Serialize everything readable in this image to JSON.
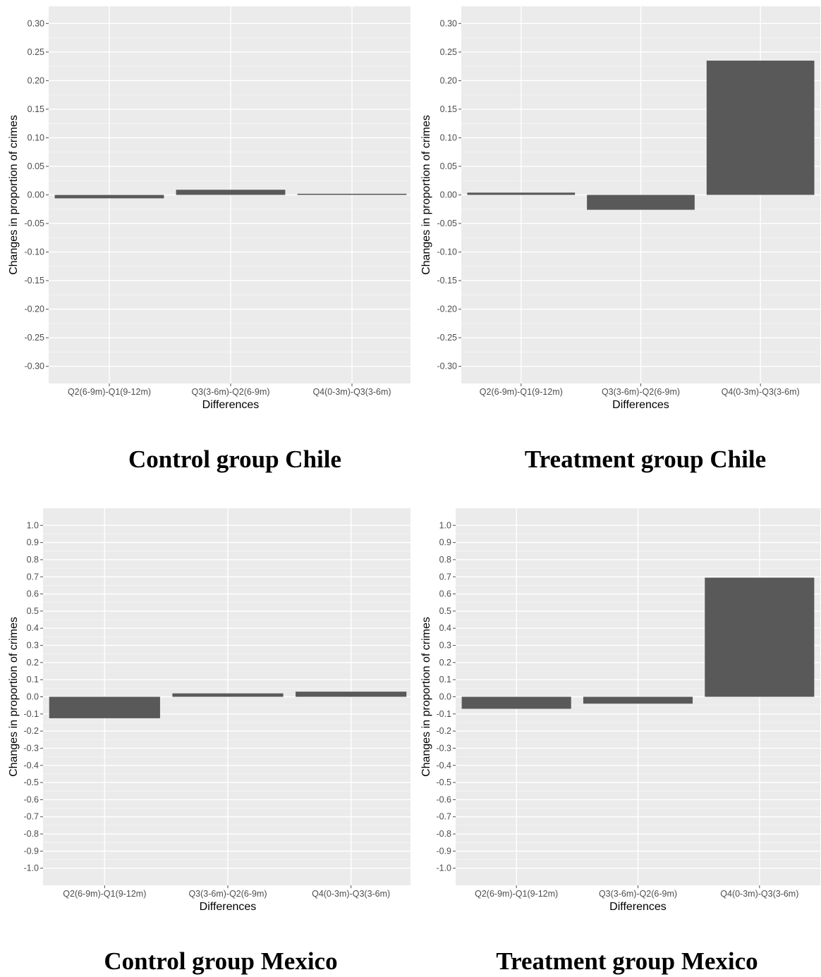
{
  "colors": {
    "panel_bg": "#EBEBEB",
    "grid_major": "#FFFFFF",
    "grid_minor": "#F5F5F5",
    "bar": "#595959",
    "tick": "#4D4D4D",
    "axis_title": "#000000"
  },
  "chart_data": [
    {
      "type": "bar",
      "caption": "Control group Chile",
      "xlabel": "Differences",
      "ylabel": "Changes in proportion of crimes",
      "categories": [
        "Q2(6-9m)-Q1(9-12m)",
        "Q3(3-6m)-Q2(6-9m)",
        "Q4(0-3m)-Q3(3-6m)"
      ],
      "values": [
        -0.006,
        0.009,
        0.002
      ],
      "ylim": [
        -0.33,
        0.33
      ],
      "yticks": [
        -0.3,
        -0.25,
        -0.2,
        -0.15,
        -0.1,
        -0.05,
        0.0,
        0.05,
        0.1,
        0.15,
        0.2,
        0.25,
        0.3
      ],
      "ytick_labels": [
        "-0.30",
        "-0.25",
        "-0.20",
        "-0.15",
        "-0.10",
        "-0.05",
        "0.00",
        "0.05",
        "0.10",
        "0.15",
        "0.20",
        "0.25",
        "0.30"
      ],
      "grid": true
    },
    {
      "type": "bar",
      "caption": "Treatment group Chile",
      "xlabel": "Differences",
      "ylabel": "Changes in proportion of crimes",
      "categories": [
        "Q2(6-9m)-Q1(9-12m)",
        "Q3(3-6m)-Q2(6-9m)",
        "Q4(0-3m)-Q3(3-6m)"
      ],
      "values": [
        0.004,
        -0.026,
        0.235
      ],
      "ylim": [
        -0.33,
        0.33
      ],
      "yticks": [
        -0.3,
        -0.25,
        -0.2,
        -0.15,
        -0.1,
        -0.05,
        0.0,
        0.05,
        0.1,
        0.15,
        0.2,
        0.25,
        0.3
      ],
      "ytick_labels": [
        "-0.30",
        "-0.25",
        "-0.20",
        "-0.15",
        "-0.10",
        "-0.05",
        "0.00",
        "0.05",
        "0.10",
        "0.15",
        "0.20",
        "0.25",
        "0.30"
      ],
      "grid": true
    },
    {
      "type": "bar",
      "caption": "Control group Mexico",
      "xlabel": "Differences",
      "ylabel": "Changes in proportion of crimes",
      "categories": [
        "Q2(6-9m)-Q1(9-12m)",
        "Q3(3-6m)-Q2(6-9m)",
        "Q4(0-3m)-Q3(3-6m)"
      ],
      "values": [
        -0.125,
        0.02,
        0.03
      ],
      "ylim": [
        -1.1,
        1.1
      ],
      "yticks": [
        -1.0,
        -0.9,
        -0.8,
        -0.7,
        -0.6,
        -0.5,
        -0.4,
        -0.3,
        -0.2,
        -0.1,
        0.0,
        0.1,
        0.2,
        0.3,
        0.4,
        0.5,
        0.6,
        0.7,
        0.8,
        0.9,
        1.0
      ],
      "ytick_labels": [
        "-1.0",
        "-0.9",
        "-0.8",
        "-0.7",
        "-0.6",
        "-0.5",
        "-0.4",
        "-0.3",
        "-0.2",
        "-0.1",
        "0.0",
        "0.1",
        "0.2",
        "0.3",
        "0.4",
        "0.5",
        "0.6",
        "0.7",
        "0.8",
        "0.9",
        "1.0"
      ],
      "grid": true
    },
    {
      "type": "bar",
      "caption": "Treatment group Mexico",
      "xlabel": "Differences",
      "ylabel": "Changes in proportion of crimes",
      "categories": [
        "Q2(6-9m)-Q1(9-12m)",
        "Q3(3-6m)-Q2(6-9m)",
        "Q4(0-3m)-Q3(3-6m)"
      ],
      "values": [
        -0.07,
        -0.04,
        0.695
      ],
      "ylim": [
        -1.1,
        1.1
      ],
      "yticks": [
        -1.0,
        -0.9,
        -0.8,
        -0.7,
        -0.6,
        -0.5,
        -0.4,
        -0.3,
        -0.2,
        -0.1,
        0.0,
        0.1,
        0.2,
        0.3,
        0.4,
        0.5,
        0.6,
        0.7,
        0.8,
        0.9,
        1.0
      ],
      "ytick_labels": [
        "-1.0",
        "-0.9",
        "-0.8",
        "-0.7",
        "-0.6",
        "-0.5",
        "-0.4",
        "-0.3",
        "-0.2",
        "-0.1",
        "0.0",
        "0.1",
        "0.2",
        "0.3",
        "0.4",
        "0.5",
        "0.6",
        "0.7",
        "0.8",
        "0.9",
        "1.0"
      ],
      "grid": true
    }
  ]
}
